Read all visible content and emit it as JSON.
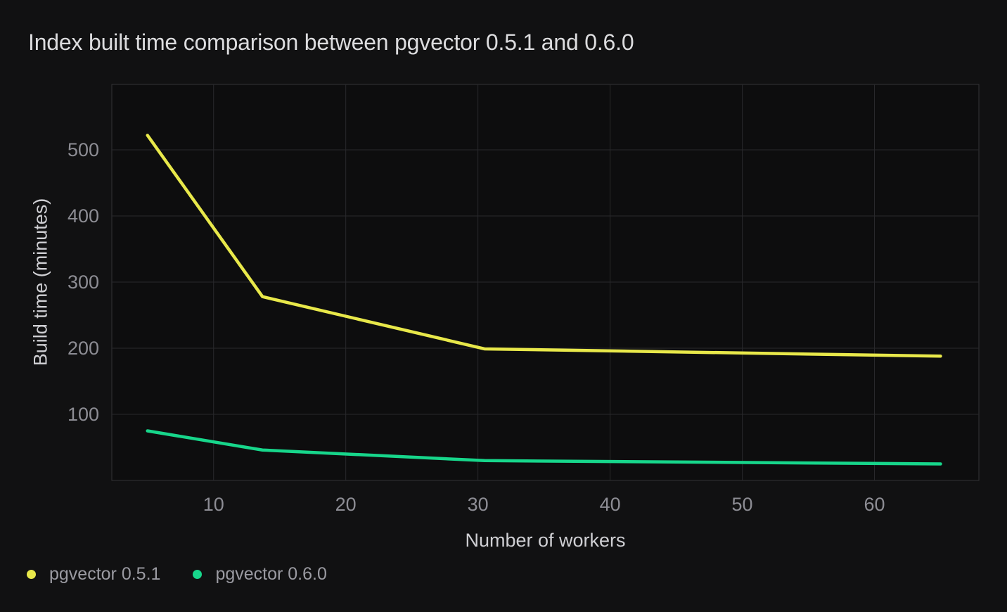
{
  "chart_data": {
    "type": "line",
    "title": "Index built time comparison between pgvector 0.5.1 and 0.6.0",
    "xlabel": "Number of workers",
    "ylabel": "Build time (minutes)",
    "x_ticks": [
      10,
      20,
      30,
      40,
      50,
      60
    ],
    "y_ticks": [
      100,
      200,
      300,
      400,
      500
    ],
    "xlim": [
      2.3,
      67.9
    ],
    "ylim": [
      0,
      599
    ],
    "grid": true,
    "legend_position": "bottom-left",
    "series": [
      {
        "name": "pgvector 0.5.1",
        "color": "#e8e84a",
        "x": [
          5,
          13.7,
          30.5,
          65
        ],
        "values": [
          522,
          278,
          199,
          188
        ]
      },
      {
        "name": "pgvector 0.6.0",
        "color": "#17d68b",
        "x": [
          5,
          13.7,
          30.5,
          65
        ],
        "values": [
          75,
          46,
          30,
          25
        ]
      }
    ],
    "colors": {
      "background": "#111112",
      "plot_background": "#0d0d0e",
      "gridline": "#29292c",
      "plot_border": "#333336",
      "title_text": "#dcdcde",
      "tick_text": "#8d8d94",
      "axis_title_text": "#cfcfd3",
      "legend_text": "#9b9ba2"
    }
  }
}
